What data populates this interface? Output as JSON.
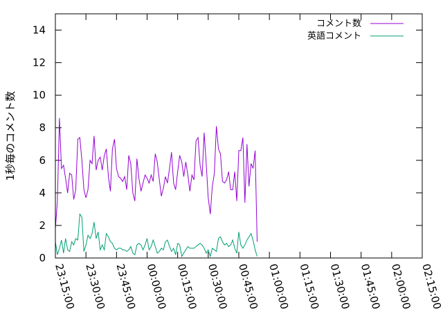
{
  "chart_data": {
    "type": "line",
    "ylabel": "1秒毎のコメント数",
    "xlabel": "",
    "title": "",
    "ylim": [
      0,
      15
    ],
    "xlim": [
      "23:15:00",
      "02:15:00"
    ],
    "y_ticks": [
      "0",
      "2",
      "4",
      "6",
      "8",
      "10",
      "12",
      "14"
    ],
    "x_ticks": [
      "23:15:00",
      "23:30:00",
      "23:45:00",
      "00:00:00",
      "00:15:00",
      "00:30:00",
      "00:45:00",
      "01:00:00",
      "01:15:00",
      "01:30:00",
      "01:45:00",
      "02:00:00",
      "02:15:00"
    ],
    "grid": false,
    "legend_position": "top-right",
    "x_time_start": "23:15:00",
    "x_step_seconds": 60,
    "series": [
      {
        "name": "コメント数",
        "color": "#9400d3",
        "values": [
          1.8,
          3.5,
          8.6,
          5.5,
          5.7,
          4.9,
          4.0,
          5.2,
          5.1,
          3.6,
          4.2,
          7.3,
          7.4,
          6.0,
          4.2,
          3.7,
          4.2,
          6.0,
          5.8,
          7.5,
          5.4,
          6.0,
          6.2,
          5.4,
          6.3,
          6.7,
          5.0,
          4.1,
          6.7,
          7.3,
          5.5,
          5.0,
          4.9,
          4.7,
          5.0,
          4.2,
          6.3,
          5.8,
          4.0,
          3.5,
          6.1,
          4.9,
          4.1,
          4.6,
          5.1,
          4.9,
          4.6,
          5.1,
          4.7,
          6.4,
          5.9,
          4.8,
          3.8,
          4.3,
          5.0,
          4.6,
          5.5,
          6.5,
          4.6,
          4.2,
          5.3,
          6.3,
          5.9,
          5.0,
          5.9,
          5.1,
          4.1,
          5.1,
          4.8,
          7.2,
          7.4,
          5.7,
          5.0,
          7.7,
          5.8,
          3.7,
          2.7,
          4.4,
          5.2,
          8.1,
          6.7,
          6.4,
          4.7,
          4.6,
          4.8,
          5.3,
          4.2,
          4.2,
          5.3,
          3.5,
          6.6,
          6.6,
          7.4,
          3.4,
          7.0,
          4.4,
          5.8,
          5.5,
          6.6,
          1.0
        ]
      },
      {
        "name": "英語コメント",
        "color": "#009e73",
        "values": [
          1.0,
          0.2,
          0.6,
          1.1,
          0.3,
          1.2,
          0.5,
          0.4,
          1.0,
          0.8,
          1.2,
          1.1,
          2.7,
          2.5,
          0.4,
          0.8,
          1.4,
          1.2,
          1.5,
          2.2,
          1.2,
          1.6,
          0.5,
          0.8,
          0.5,
          1.5,
          1.3,
          1.0,
          0.9,
          0.6,
          0.5,
          0.6,
          0.6,
          0.5,
          0.5,
          0.4,
          0.5,
          0.7,
          0.3,
          0.2,
          0.8,
          0.9,
          0.8,
          0.5,
          0.8,
          1.2,
          0.5,
          0.7,
          1.1,
          0.7,
          0.3,
          0.4,
          0.6,
          0.5,
          1.0,
          1.1,
          0.7,
          0.4,
          0.6,
          0.2,
          0.9,
          0.8,
          0.1,
          0.3,
          0.5,
          0.7,
          0.6,
          0.6,
          0.6,
          0.7,
          0.8,
          0.9,
          0.8,
          0.6,
          0.3,
          0.5,
          0.1,
          0.6,
          0.5,
          0.4,
          1.2,
          1.3,
          1.0,
          0.8,
          0.9,
          0.7,
          0.8,
          1.1,
          0.6,
          0.3,
          1.6,
          0.8,
          0.6,
          0.8,
          1.1,
          1.3,
          1.5,
          1.1,
          0.5,
          0.1
        ]
      }
    ]
  }
}
